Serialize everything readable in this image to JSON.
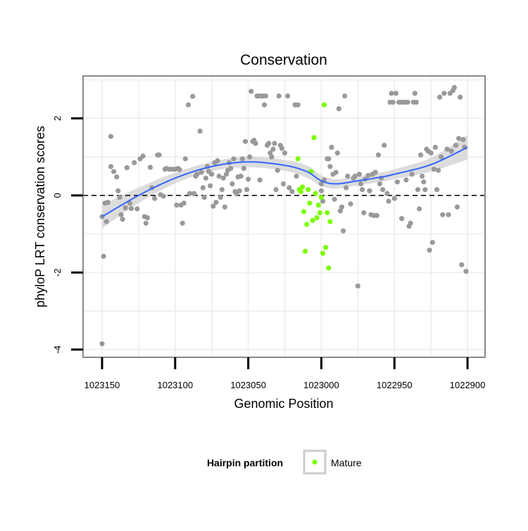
{
  "chart_data": {
    "type": "scatter",
    "title": "Conservation",
    "xlabel": "Genomic Position",
    "ylabel": "phyloP LRT conservation scores",
    "x_reversed": true,
    "xlim": [
      1023163,
      1022888
    ],
    "ylim": [
      -4.2,
      3.1
    ],
    "x_ticks": [
      1023150,
      1023100,
      1023050,
      1023000,
      1022950,
      1022900
    ],
    "x_tick_labels": [
      "1023150",
      "1023100",
      "1023050",
      "1023000",
      "1022950",
      "1022900"
    ],
    "y_ticks": [
      -4,
      -2,
      0,
      2
    ],
    "y_tick_labels": [
      "-4",
      "-2",
      "0",
      "2"
    ],
    "grid": true,
    "reference_line": {
      "y": 0,
      "style": "dashed",
      "color": "#000000"
    },
    "legend": {
      "title": "Hairpin partition",
      "position": "bottom",
      "entries": [
        {
          "label": "Mature",
          "color": "#7cfc00"
        }
      ]
    },
    "colors": {
      "other": "#999999",
      "mature": "#7cfc00",
      "smooth": "#3366ff",
      "ribbon": "#d6d6d6",
      "panel": "#ffffff",
      "grid": "#f0f0f0",
      "frame": "#8a8a8a"
    },
    "series": [
      {
        "name": "",
        "color": "#999999",
        "points": [
          [
            1023150,
            -3.85
          ],
          [
            1023149,
            -1.58
          ],
          [
            1023150,
            -0.55
          ],
          [
            1023148,
            -0.2
          ],
          [
            1023147,
            -0.68
          ],
          [
            1023146,
            -0.18
          ],
          [
            1023144,
            1.53
          ],
          [
            1023144,
            0.75
          ],
          [
            1023142,
            0.62
          ],
          [
            1023140,
            0.48
          ],
          [
            1023139,
            0.12
          ],
          [
            1023138,
            -0.05
          ],
          [
            1023137,
            -0.5
          ],
          [
            1023136,
            -0.62
          ],
          [
            1023134,
            -0.32
          ],
          [
            1023133,
            0.72
          ],
          [
            1023131,
            -0.2
          ],
          [
            1023130,
            -0.34
          ],
          [
            1023128,
            0.85
          ],
          [
            1023126,
            -0.35
          ],
          [
            1023124,
            0.95
          ],
          [
            1023122,
            1.02
          ],
          [
            1023121,
            -0.55
          ],
          [
            1023120,
            -0.72
          ],
          [
            1023119,
            -0.58
          ],
          [
            1023117,
            0.73
          ],
          [
            1023116,
            0.2
          ],
          [
            1023114,
            -0.08
          ],
          [
            1023112,
            1.05
          ],
          [
            1023111,
            1.05
          ],
          [
            1023110,
            0.02
          ],
          [
            1023108,
            -0.02
          ],
          [
            1023107,
            0.68
          ],
          [
            1023106,
            0.7
          ],
          [
            1023104,
            0.68
          ],
          [
            1023102,
            0.68
          ],
          [
            1023100,
            0.68
          ],
          [
            1023099,
            -0.25
          ],
          [
            1023098,
            0.7
          ],
          [
            1023097,
            0.67
          ],
          [
            1023096,
            -0.25
          ],
          [
            1023095,
            -0.72
          ],
          [
            1023094,
            -0.2
          ],
          [
            1023093,
            0.95
          ],
          [
            1023091,
            2.35
          ],
          [
            1023090,
            0.05
          ],
          [
            1023088,
            2.57
          ],
          [
            1023087,
            0.05
          ],
          [
            1023086,
            0.5
          ],
          [
            1023085,
            0.55
          ],
          [
            1023083,
            1.67
          ],
          [
            1023082,
            0.6
          ],
          [
            1023081,
            0.2
          ],
          [
            1023080,
            -0.05
          ],
          [
            1023079,
            0.45
          ],
          [
            1023078,
            0.75
          ],
          [
            1023077,
            0.62
          ],
          [
            1023076,
            0.25
          ],
          [
            1023075,
            0.55
          ],
          [
            1023074,
            -0.28
          ],
          [
            1023073,
            0.85
          ],
          [
            1023072,
            -0.18
          ],
          [
            1023071,
            0.9
          ],
          [
            1023070,
            0.5
          ],
          [
            1023069,
            -0.05
          ],
          [
            1023068,
            0.15
          ],
          [
            1023067,
            0.45
          ],
          [
            1023066,
            -0.3
          ],
          [
            1023065,
            0.55
          ],
          [
            1023064,
            0.65
          ],
          [
            1023063,
            0.85
          ],
          [
            1023062,
            0.7
          ],
          [
            1023061,
            0.3
          ],
          [
            1023060,
            0.95
          ],
          [
            1023059,
            0.1
          ],
          [
            1023058,
            0.05
          ],
          [
            1023057,
            0.48
          ],
          [
            1023056,
            0.12
          ],
          [
            1023055,
            0.5
          ],
          [
            1023054,
            0.95
          ],
          [
            1023053,
            0.7
          ],
          [
            1023052,
            1.4
          ],
          [
            1023051,
            0.15
          ],
          [
            1023050,
            0.42
          ],
          [
            1023049,
            1.0
          ],
          [
            1023048,
            2.7
          ],
          [
            1023047,
            1.4
          ],
          [
            1023046,
            1.43
          ],
          [
            1023045,
            1.35
          ],
          [
            1023044,
            2.58
          ],
          [
            1023043,
            2.58
          ],
          [
            1023042,
            0.4
          ],
          [
            1023041,
            2.58
          ],
          [
            1023040,
            2.58
          ],
          [
            1023039,
            2.35
          ],
          [
            1023038,
            2.58
          ],
          [
            1023037,
            1.3
          ],
          [
            1023036,
            1.35
          ],
          [
            1023035,
            1.1
          ],
          [
            1023034,
            1.0
          ],
          [
            1023033,
            1.2
          ],
          [
            1023032,
            1.35
          ],
          [
            1023031,
            0.15
          ],
          [
            1023030,
            0.65
          ],
          [
            1023029,
            2.58
          ],
          [
            1023028,
            1.3
          ],
          [
            1023027,
            1.22
          ],
          [
            1023026,
            0.3
          ],
          [
            1023025,
            1.1
          ],
          [
            1023023,
            2.58
          ],
          [
            1023022,
            0.2
          ],
          [
            1023020,
            0.1
          ],
          [
            1023018,
            2.35
          ],
          [
            1023017,
            0.5
          ],
          [
            1023016,
            2.35
          ],
          [
            1023000,
            0.3
          ],
          [
            1023000,
            0.12
          ],
          [
            1022999,
            -0.15
          ],
          [
            1022998,
            0.4
          ],
          [
            1022996,
            0.95
          ],
          [
            1022995,
            0.95
          ],
          [
            1022994,
            0.75
          ],
          [
            1022993,
            1.25
          ],
          [
            1022992,
            0.55
          ],
          [
            1022991,
            -0.1
          ],
          [
            1022990,
            0.6
          ],
          [
            1022989,
            1.1
          ],
          [
            1022988,
            2.25
          ],
          [
            1022987,
            -0.4
          ],
          [
            1022986,
            -0.3
          ],
          [
            1022985,
            -0.92
          ],
          [
            1022984,
            2.58
          ],
          [
            1022983,
            0.2
          ],
          [
            1022982,
            0.5
          ],
          [
            1022980,
            -0.22
          ],
          [
            1022978,
            0.45
          ],
          [
            1022977,
            0.5
          ],
          [
            1022975,
            -2.35
          ],
          [
            1022974,
            0.55
          ],
          [
            1022973,
            0.3
          ],
          [
            1022972,
            0.15
          ],
          [
            1022971,
            -0.45
          ],
          [
            1022970,
            0.42
          ],
          [
            1022968,
            0.52
          ],
          [
            1022967,
            0.12
          ],
          [
            1022966,
            -0.5
          ],
          [
            1022965,
            0.55
          ],
          [
            1022964,
            -0.52
          ],
          [
            1022963,
            0.6
          ],
          [
            1022962,
            -0.52
          ],
          [
            1022961,
            1.05
          ],
          [
            1022960,
            0.3
          ],
          [
            1022959,
            0.45
          ],
          [
            1022958,
            0.15
          ],
          [
            1022957,
            1.3
          ],
          [
            1022955,
            0.05
          ],
          [
            1022954,
            -0.15
          ],
          [
            1022953,
            2.42
          ],
          [
            1022952,
            2.65
          ],
          [
            1022951,
            2.42
          ],
          [
            1022950,
            -0.08
          ],
          [
            1022949,
            2.65
          ],
          [
            1022948,
            0.35
          ],
          [
            1022947,
            2.42
          ],
          [
            1022946,
            2.42
          ],
          [
            1022945,
            -0.6
          ],
          [
            1022944,
            2.42
          ],
          [
            1022943,
            2.42
          ],
          [
            1022942,
            0.4
          ],
          [
            1022941,
            2.42
          ],
          [
            1022940,
            -0.8
          ],
          [
            1022939,
            -0.72
          ],
          [
            1022938,
            0.55
          ],
          [
            1022937,
            2.42
          ],
          [
            1022936,
            2.65
          ],
          [
            1022935,
            2.42
          ],
          [
            1022934,
            0.15
          ],
          [
            1022933,
            -0.35
          ],
          [
            1022932,
            1.05
          ],
          [
            1022931,
            0.5
          ],
          [
            1022930,
            0.35
          ],
          [
            1022929,
            0.15
          ],
          [
            1022928,
            1.2
          ],
          [
            1022927,
            1.15
          ],
          [
            1022926,
            -1.42
          ],
          [
            1022925,
            1.1
          ],
          [
            1022924,
            -1.22
          ],
          [
            1022923,
            0.68
          ],
          [
            1022922,
            1.25
          ],
          [
            1022921,
            0.15
          ],
          [
            1022920,
            0.65
          ],
          [
            1022919,
            2.55
          ],
          [
            1022918,
            1.0
          ],
          [
            1022917,
            -0.5
          ],
          [
            1022916,
            2.65
          ],
          [
            1022914,
            1.2
          ],
          [
            1022913,
            -0.5
          ],
          [
            1022912,
            2.65
          ],
          [
            1022911,
            1.15
          ],
          [
            1022910,
            2.72
          ],
          [
            1022909,
            2.8
          ],
          [
            1022908,
            1.3
          ],
          [
            1022907,
            -0.3
          ],
          [
            1022906,
            1.48
          ],
          [
            1022905,
            2.55
          ],
          [
            1022904,
            -1.8
          ],
          [
            1022903,
            1.45
          ],
          [
            1022902,
            1.25
          ],
          [
            1022901,
            -1.97
          ]
        ]
      },
      {
        "name": "Mature",
        "color": "#7cfc00",
        "points": [
          [
            1023016,
            0.95
          ],
          [
            1023015,
            0.15
          ],
          [
            1023014,
            0.1
          ],
          [
            1023013,
            0.22
          ],
          [
            1023012,
            -0.42
          ],
          [
            1023011,
            -1.45
          ],
          [
            1023010,
            -0.75
          ],
          [
            1023009,
            0.15
          ],
          [
            1023008,
            -0.2
          ],
          [
            1023007,
            0.62
          ],
          [
            1023006,
            -0.65
          ],
          [
            1023005,
            1.5
          ],
          [
            1023004,
            0.05
          ],
          [
            1023003,
            -0.58
          ],
          [
            1023002,
            -0.25
          ],
          [
            1023001,
            -0.45
          ],
          [
            1023000,
            -0.05
          ],
          [
            1022999,
            -1.5
          ],
          [
            1022998,
            2.35
          ],
          [
            1022997,
            -1.35
          ],
          [
            1022996,
            -0.45
          ],
          [
            1022995,
            -1.88
          ],
          [
            1022994,
            -0.68
          ]
        ]
      }
    ],
    "smooth_line": {
      "color": "#3366ff",
      "x": [
        1023150,
        1023125,
        1023100,
        1023075,
        1023050,
        1023025,
        1023010,
        1023000,
        1022990,
        1022975,
        1022960,
        1022950,
        1022925,
        1022900
      ],
      "y": [
        -0.55,
        0.0,
        0.45,
        0.75,
        0.87,
        0.78,
        0.62,
        0.38,
        0.3,
        0.38,
        0.47,
        0.55,
        0.8,
        1.25
      ],
      "ribbon_half_width": [
        0.3,
        0.2,
        0.14,
        0.12,
        0.14,
        0.14,
        0.16,
        0.14,
        0.12,
        0.12,
        0.12,
        0.13,
        0.18,
        0.32
      ]
    }
  }
}
